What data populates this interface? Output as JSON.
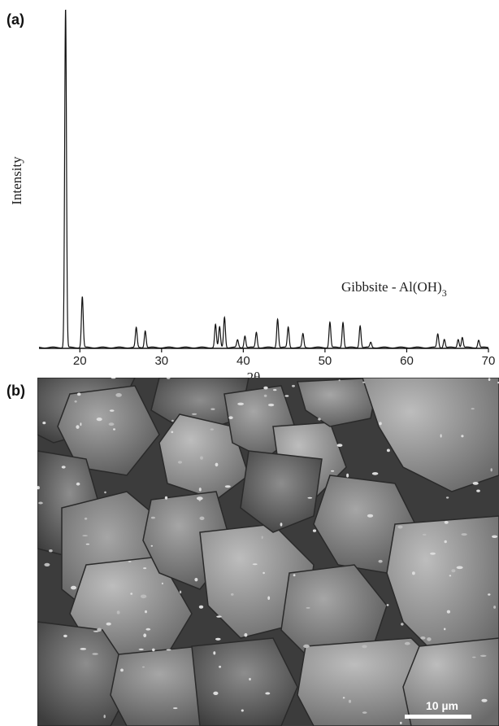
{
  "panel_a_label": "(a)",
  "panel_b_label": "(b)",
  "chart_data": {
    "type": "line",
    "title": "",
    "xlabel": "2θ",
    "ylabel": "Intensity",
    "xlim": [
      15,
      70
    ],
    "ylim": [
      0,
      100
    ],
    "xticks": [
      20,
      30,
      40,
      50,
      60,
      70
    ],
    "grid": false,
    "annotation": {
      "text": "Gibbsite - Al(OH)",
      "subscript": "3"
    },
    "peaks": [
      {
        "x": 18.25,
        "y": 100
      },
      {
        "x": 20.3,
        "y": 15
      },
      {
        "x": 26.9,
        "y": 5.8
      },
      {
        "x": 28.0,
        "y": 5.0
      },
      {
        "x": 36.6,
        "y": 6.8
      },
      {
        "x": 37.1,
        "y": 6.0
      },
      {
        "x": 37.7,
        "y": 9.0
      },
      {
        "x": 39.3,
        "y": 2.2
      },
      {
        "x": 40.2,
        "y": 3.5
      },
      {
        "x": 41.6,
        "y": 4.5
      },
      {
        "x": 44.2,
        "y": 8.5
      },
      {
        "x": 45.5,
        "y": 6.0
      },
      {
        "x": 47.3,
        "y": 4.0
      },
      {
        "x": 50.6,
        "y": 7.5
      },
      {
        "x": 52.2,
        "y": 7.5
      },
      {
        "x": 54.3,
        "y": 6.5
      },
      {
        "x": 55.6,
        "y": 1.5
      },
      {
        "x": 63.8,
        "y": 4.0
      },
      {
        "x": 64.6,
        "y": 2.5
      },
      {
        "x": 66.3,
        "y": 2.5
      },
      {
        "x": 66.8,
        "y": 3.0
      },
      {
        "x": 68.8,
        "y": 2.2
      }
    ]
  },
  "sem_image": {
    "scale_bar_label": "10 µm",
    "background": "#4a4a4a"
  }
}
